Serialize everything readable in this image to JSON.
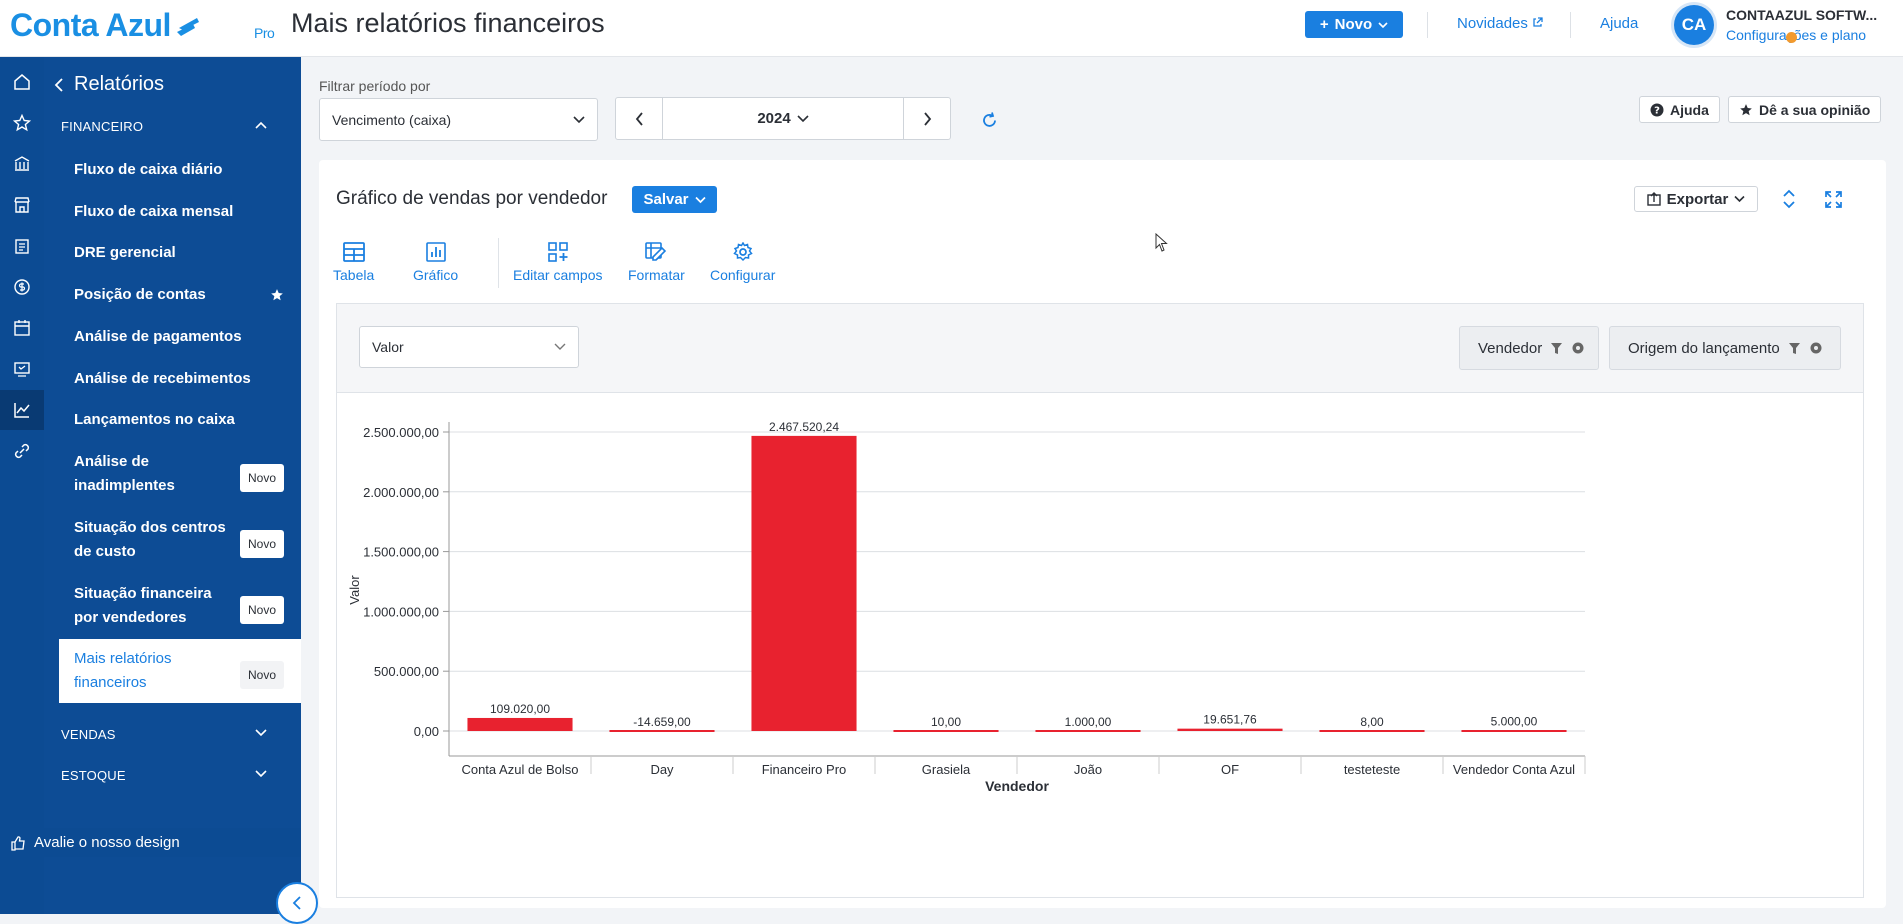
{
  "header": {
    "logo": "Conta Azul",
    "logo_tier": "Pro",
    "page_title": "Mais relatórios financeiros",
    "new_button": "Novo",
    "news_link": "Novidades",
    "help_link": "Ajuda",
    "avatar_initials": "CA",
    "company_name": "CONTAAZUL SOFTW...",
    "settings_link": "Configurações e plano"
  },
  "sidebar": {
    "title": "Relatórios",
    "sections": [
      {
        "label": "FINANCEIRO",
        "expanded": true
      },
      {
        "label": "VENDAS",
        "expanded": false
      },
      {
        "label": "ESTOQUE",
        "expanded": false
      }
    ],
    "items": [
      {
        "line1": "Fluxo de caixa diário",
        "line2": ""
      },
      {
        "line1": "Fluxo de caixa mensal",
        "line2": ""
      },
      {
        "line1": "DRE gerencial",
        "line2": ""
      },
      {
        "line1": "Posição de contas",
        "line2": "",
        "favorite": true
      },
      {
        "line1": "Análise de pagamentos",
        "line2": ""
      },
      {
        "line1": "Análise de recebimentos",
        "line2": ""
      },
      {
        "line1": "Lançamentos no caixa",
        "line2": ""
      },
      {
        "line1": "Análise de",
        "line2": "inadimplentes",
        "badge": "Novo"
      },
      {
        "line1": "Situação dos centros",
        "line2": "de custo",
        "badge": "Novo"
      },
      {
        "line1": "Situação financeira",
        "line2": "por vendedores",
        "badge": "Novo"
      },
      {
        "line1": "Mais relatórios",
        "line2": "financeiros",
        "badge": "Novo",
        "active": true
      }
    ],
    "footer": "Avalie o nosso design"
  },
  "filters": {
    "period_label": "Filtrar período por",
    "period_value": "Vencimento (caixa)",
    "year": "2024",
    "help_button": "Ajuda",
    "feedback_button": "Dê a sua opinião"
  },
  "report": {
    "title": "Gráfico de vendas por vendedor",
    "save_button": "Salvar",
    "export_button": "Exportar",
    "tools": [
      "Tabela",
      "Gráfico",
      "Editar campos",
      "Formatar",
      "Configurar"
    ],
    "measure_select": "Valor",
    "dimension_vendedor": "Vendedor",
    "dimension_origem": "Origem do lançamento"
  },
  "colors": {
    "brand": "#1a8fe3",
    "sidebar": "#0d4c95",
    "bar": "#e8222f"
  },
  "chart_data": {
    "type": "bar",
    "categories": [
      "Conta Azul de Bolso",
      "Day",
      "Financeiro Pro",
      "Grasiela",
      "João",
      "OF",
      "testeteste",
      "Vendedor Conta Azul"
    ],
    "values": [
      109020.0,
      -14659.0,
      2467520.24,
      10.0,
      1000.0,
      19651.76,
      8.0,
      5000.0
    ],
    "value_labels": [
      "109.020,00",
      "-14.659,00",
      "2.467.520,24",
      "10,00",
      "1.000,00",
      "19.651,76",
      "8,00",
      "5.000,00"
    ],
    "y_ticks": [
      0,
      500000,
      1000000,
      1500000,
      2000000,
      2500000
    ],
    "y_tick_labels": [
      "0,00",
      "500.000,00",
      "1.000.000,00",
      "1.500.000,00",
      "2.000.000,00",
      "2.500.000,00"
    ],
    "xlabel": "Vendedor",
    "ylabel": "Valor",
    "ylim": [
      -250000,
      2500000
    ],
    "grid": true
  }
}
